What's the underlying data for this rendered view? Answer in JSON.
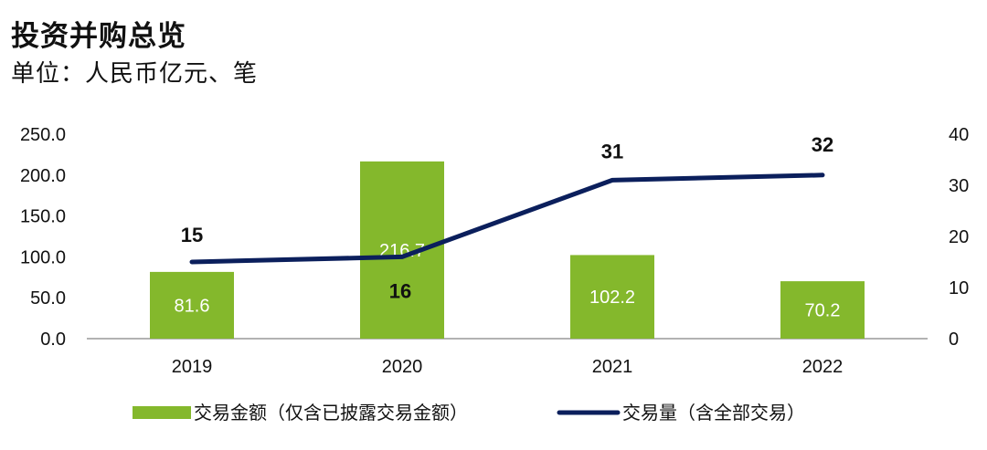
{
  "header": {
    "title": "投资并购总览",
    "subtitle": "单位：人民币亿元、笔"
  },
  "colors": {
    "bar": "#84B82C",
    "line": "#0B1F5C",
    "axis": "#999999"
  },
  "chart_data": {
    "type": "bar",
    "categories": [
      "2019",
      "2020",
      "2021",
      "2022"
    ],
    "series": [
      {
        "name": "交易金额（仅含已披露交易金额）",
        "type": "bar",
        "axis": "left",
        "values": [
          81.6,
          216.7,
          102.2,
          70.2
        ],
        "labels": [
          "81.6",
          "216.7",
          "102.2",
          "70.2"
        ]
      },
      {
        "name": "交易量（含全部交易）",
        "type": "line",
        "axis": "right",
        "values": [
          15,
          16,
          31,
          32
        ],
        "labels": [
          "15",
          "16",
          "31",
          "32"
        ]
      }
    ],
    "y_left": {
      "ylim": [
        0,
        250
      ],
      "ticks": [
        "0.0",
        "50.0",
        "100.0",
        "150.0",
        "200.0",
        "250.0"
      ]
    },
    "y_right": {
      "ylim": [
        0,
        40
      ],
      "ticks": [
        "0",
        "10",
        "20",
        "30",
        "40"
      ]
    },
    "legend_position": "bottom",
    "grid": false
  }
}
